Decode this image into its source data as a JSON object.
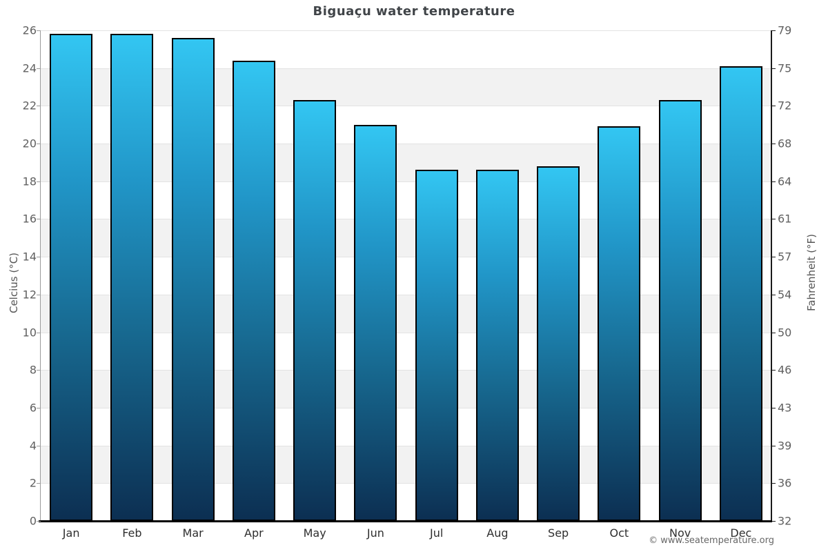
{
  "title": "Biguaçu water temperature",
  "footer": "© www.seatemperature.org",
  "axes": {
    "left_label": "Celcius (°C)",
    "right_label": "Fahrenheit (°F)"
  },
  "chart_data": {
    "type": "bar",
    "title": "Biguaçu water temperature",
    "categories": [
      "Jan",
      "Feb",
      "Mar",
      "Apr",
      "May",
      "Jun",
      "Jul",
      "Aug",
      "Sep",
      "Oct",
      "Nov",
      "Dec"
    ],
    "values": [
      25.8,
      25.8,
      25.6,
      24.4,
      22.3,
      21.0,
      18.6,
      18.6,
      18.8,
      20.9,
      22.3,
      24.1
    ],
    "unit": "°C",
    "ylabel_left": "Celcius (°C)",
    "ylabel_right": "Fahrenheit (°F)",
    "ylim": [
      0,
      26
    ],
    "yticks_celsius": [
      26,
      24,
      22,
      20,
      18,
      16,
      14,
      12,
      10,
      8,
      6,
      4,
      2,
      0
    ],
    "yticks_fahrenheit": [
      79,
      75,
      72,
      68,
      64,
      61,
      57,
      54,
      50,
      46,
      43,
      39,
      36,
      32
    ],
    "grid": "alternate-bands",
    "legend": "none",
    "colors": {
      "bar_top": "#33C6F2",
      "bar_bottom": "#0C2F52",
      "bar_border": "#000000",
      "band_gray": "#F2F2F2",
      "gridline": "#E3E3E3",
      "title_text": "#404448",
      "tick_text": "#606060",
      "month_text": "#2E2E2E",
      "axis_title_text": "#555555",
      "footer_text": "#666666"
    }
  }
}
